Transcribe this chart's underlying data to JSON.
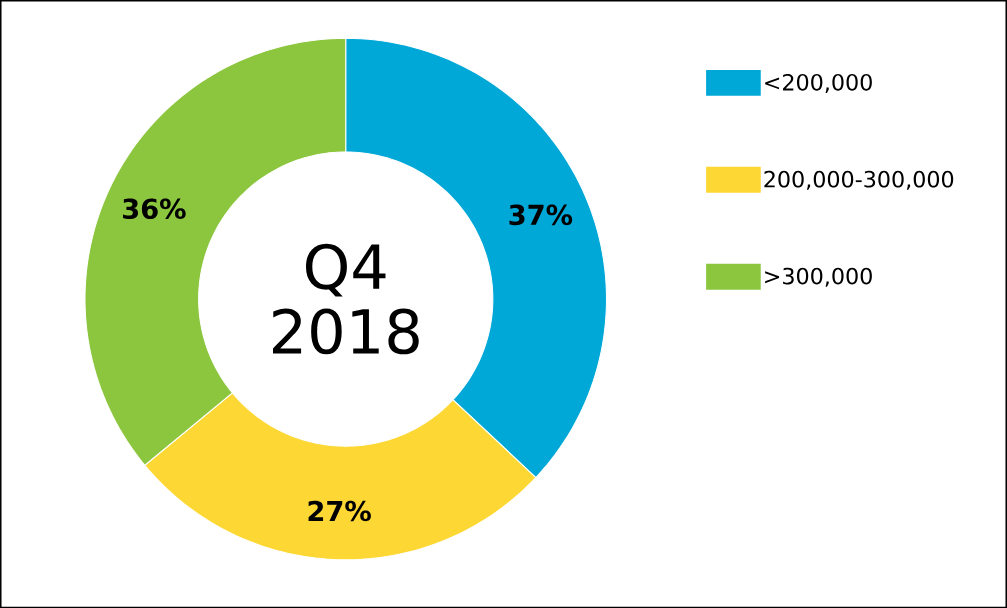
{
  "chart_data": {
    "type": "donut",
    "title": "Q4 2018",
    "categories": [
      "<200,000",
      "200,000-300,000",
      ">300,000"
    ],
    "values": [
      37,
      27,
      36
    ],
    "colors": [
      "#00a8d8",
      "#fdd835",
      "#8cc63f"
    ],
    "value_labels": [
      "37%",
      "27%",
      "36%"
    ],
    "legend": "right"
  }
}
